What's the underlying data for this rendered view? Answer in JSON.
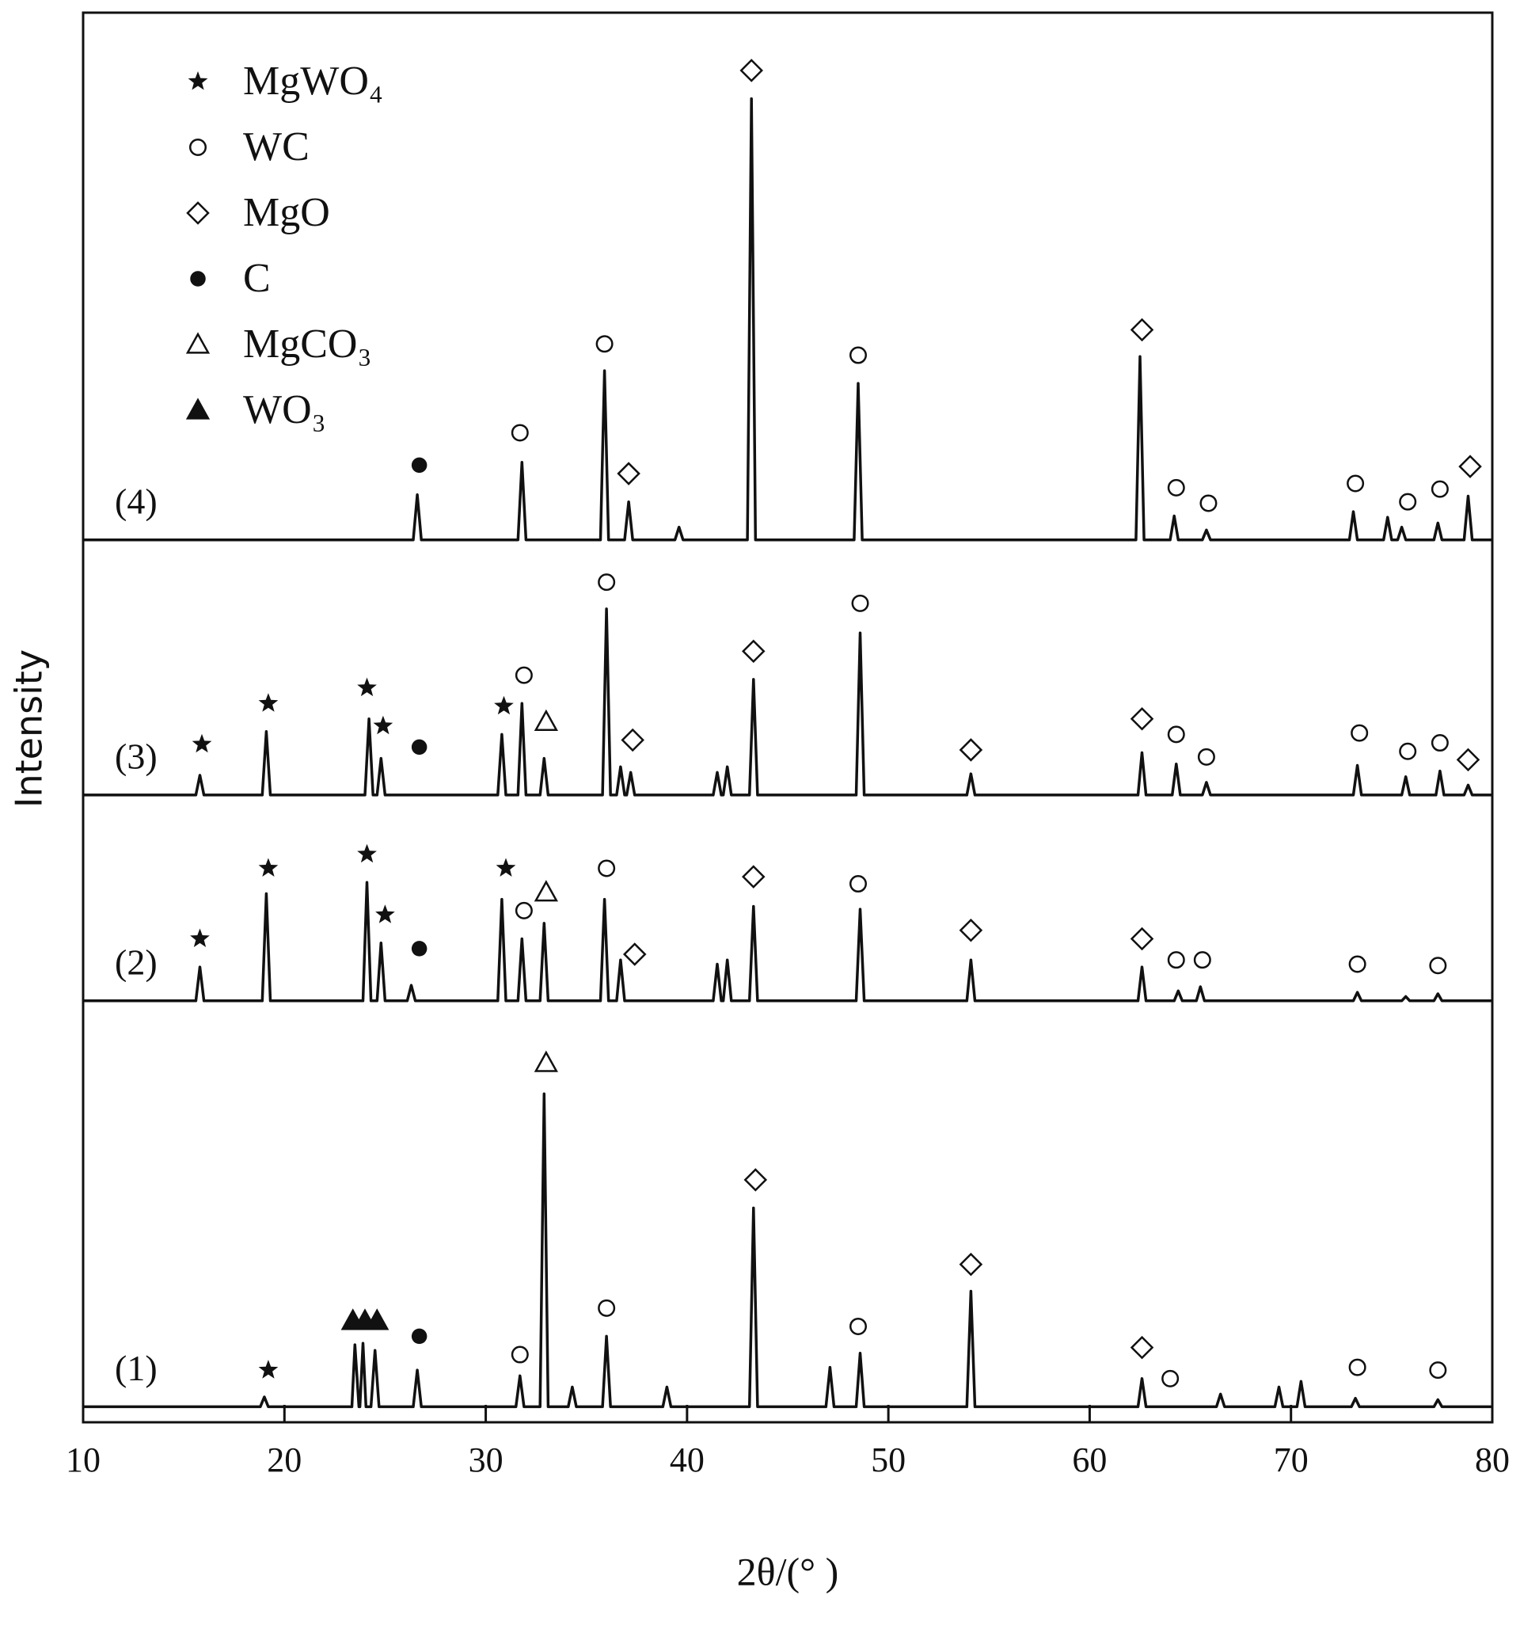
{
  "chart_data": {
    "type": "line",
    "xlabel": "2θ/(° )",
    "ylabel": "Intensity",
    "xlim": [
      10,
      80
    ],
    "xticks": [
      10,
      20,
      30,
      40,
      50,
      60,
      70,
      80
    ],
    "ylim": [
      0,
      100
    ],
    "series": [
      {
        "name": "(4)",
        "color": "#111111",
        "x": [
          10,
          26.4,
          26.6,
          26.8,
          31.6,
          31.8,
          32,
          35.7,
          35.9,
          36.1,
          36.9,
          37.1,
          37.3,
          39.4,
          39.6,
          39.8,
          43,
          43.2,
          43.4,
          48.3,
          48.5,
          48.7,
          62.3,
          62.5,
          62.7,
          64,
          64.2,
          64.4,
          65.6,
          65.8,
          66,
          72.9,
          73.1,
          73.3,
          74.6,
          74.8,
          75,
          75.3,
          75.5,
          75.7,
          77.1,
          77.3,
          77.5,
          78.6,
          78.8,
          79,
          80
        ],
        "values": [
          62.6,
          62.6,
          65.8,
          62.6,
          62.6,
          68.1,
          62.6,
          62.6,
          74.6,
          62.6,
          62.6,
          65.3,
          62.6,
          62.6,
          63.5,
          62.6,
          62.6,
          93.9,
          62.6,
          62.6,
          73.7,
          62.6,
          62.6,
          75.6,
          62.6,
          62.6,
          64.3,
          62.6,
          62.6,
          63.3,
          62.6,
          62.6,
          64.6,
          62.6,
          62.6,
          64.2,
          62.6,
          62.6,
          63.5,
          62.6,
          62.6,
          63.8,
          62.6,
          62.6,
          65.7,
          62.6,
          62.6
        ]
      },
      {
        "name": "(3)",
        "color": "#111111",
        "x": [
          10,
          15.6,
          15.8,
          16,
          18.9,
          19.1,
          19.3,
          24,
          24.2,
          24.4,
          24.6,
          24.8,
          25,
          30.6,
          30.8,
          31,
          31.6,
          31.8,
          32,
          32.7,
          32.9,
          33.1,
          35.8,
          36,
          36.2,
          36.5,
          36.7,
          36.9,
          37,
          37.2,
          37.4,
          41.3,
          41.5,
          41.7,
          41.8,
          42,
          42.2,
          43.1,
          43.3,
          43.5,
          48.4,
          48.6,
          48.8,
          53.9,
          54.1,
          54.3,
          62.4,
          62.6,
          62.8,
          64.1,
          64.3,
          64.5,
          65.6,
          65.8,
          66,
          73.1,
          73.3,
          73.5,
          75.5,
          75.7,
          75.9,
          77.2,
          77.4,
          77.6,
          78.6,
          78.8,
          79,
          80
        ],
        "values": [
          44.5,
          44.5,
          45.9,
          44.5,
          44.5,
          49.0,
          44.5,
          44.5,
          49.9,
          44.5,
          44.5,
          47.1,
          44.5,
          44.5,
          48.8,
          44.5,
          44.5,
          51.0,
          44.5,
          44.5,
          47.1,
          44.5,
          44.5,
          57.7,
          44.5,
          44.5,
          46.5,
          44.5,
          44.5,
          46.1,
          44.5,
          44.5,
          46.1,
          44.5,
          44.5,
          46.5,
          44.5,
          44.5,
          52.7,
          44.5,
          44.5,
          56.0,
          44.5,
          44.5,
          46.0,
          44.5,
          44.5,
          47.5,
          44.5,
          44.5,
          46.7,
          44.5,
          44.5,
          45.4,
          44.5,
          44.5,
          46.6,
          44.5,
          44.5,
          45.8,
          44.5,
          44.5,
          46.2,
          44.5,
          44.5,
          45.2,
          44.5,
          44.5
        ]
      },
      {
        "name": "(2)",
        "color": "#111111",
        "x": [
          10,
          15.6,
          15.8,
          16,
          18.9,
          19.1,
          19.3,
          23.9,
          24.1,
          24.3,
          24.6,
          24.8,
          25,
          26.1,
          26.3,
          26.5,
          30.6,
          30.8,
          31,
          31.6,
          31.8,
          32,
          32.7,
          32.9,
          33.1,
          35.7,
          35.9,
          36.1,
          36.5,
          36.7,
          36.9,
          41.3,
          41.5,
          41.7,
          41.8,
          42,
          42.2,
          43.1,
          43.3,
          43.5,
          48.4,
          48.6,
          48.8,
          53.9,
          54.1,
          54.3,
          62.4,
          62.6,
          62.8,
          64.2,
          64.4,
          64.6,
          65.3,
          65.5,
          65.7,
          73.1,
          73.3,
          73.5,
          75.5,
          75.7,
          75.9,
          77.1,
          77.3,
          77.5,
          80
        ],
        "values": [
          29.9,
          29.9,
          32.3,
          29.9,
          29.9,
          37.5,
          29.9,
          29.9,
          38.3,
          29.9,
          29.9,
          34.0,
          29.9,
          29.9,
          31.0,
          29.9,
          29.9,
          37.1,
          29.9,
          29.9,
          34.3,
          29.9,
          29.9,
          35.4,
          29.9,
          29.9,
          37.1,
          29.9,
          29.9,
          32.8,
          29.9,
          29.9,
          32.5,
          29.9,
          29.9,
          32.8,
          29.9,
          29.9,
          36.6,
          29.9,
          29.9,
          36.4,
          29.9,
          29.9,
          32.8,
          29.9,
          29.9,
          32.3,
          29.9,
          29.9,
          30.6,
          29.9,
          29.9,
          30.9,
          29.9,
          29.9,
          30.5,
          29.9,
          29.9,
          30.2,
          29.9,
          29.9,
          30.4,
          29.9,
          29.9
        ]
      },
      {
        "name": "(1)",
        "color": "#111111",
        "x": [
          10,
          18.8,
          19,
          19.2,
          23.35,
          23.5,
          23.7,
          23.75,
          23.9,
          24.05,
          24.3,
          24.5,
          24.7,
          26.4,
          26.6,
          26.8,
          31.5,
          31.7,
          31.9,
          32.7,
          32.9,
          33.1,
          34.1,
          34.3,
          34.5,
          35.8,
          36,
          36.2,
          38.8,
          39,
          39.2,
          43.1,
          43.3,
          43.5,
          46.9,
          47.1,
          47.3,
          48.4,
          48.6,
          48.8,
          53.9,
          54.1,
          54.3,
          62.4,
          62.6,
          62.8,
          66.3,
          66.5,
          66.7,
          69.2,
          69.4,
          69.6,
          70.3,
          70.5,
          70.7,
          73,
          73.2,
          73.4,
          77.1,
          77.3,
          77.5,
          80
        ],
        "values": [
          1.1,
          1.1,
          1.8,
          1.1,
          1.1,
          5.5,
          1.1,
          1.1,
          5.6,
          1.1,
          1.1,
          5.1,
          1.1,
          1.1,
          3.7,
          1.1,
          1.1,
          3.3,
          1.1,
          1.1,
          23.3,
          1.1,
          1.1,
          2.5,
          1.1,
          1.1,
          6.1,
          1.1,
          1.1,
          2.5,
          1.1,
          1.1,
          15.2,
          1.1,
          1.1,
          3.9,
          1.1,
          1.1,
          4.9,
          1.1,
          1.1,
          9.3,
          1.1,
          1.1,
          3.1,
          1.1,
          1.1,
          2.0,
          1.1,
          1.1,
          2.5,
          1.1,
          1.1,
          2.9,
          1.1,
          1.1,
          1.7,
          1.1,
          1.1,
          1.6,
          1.1,
          1.1
        ]
      }
    ],
    "legend": [
      {
        "name": "MgWO₄",
        "marker": "star"
      },
      {
        "name": "WC",
        "marker": "circle"
      },
      {
        "name": "MgO",
        "marker": "diamond"
      },
      {
        "name": "C",
        "marker": "dot"
      },
      {
        "name": "MgCO₃",
        "marker": "triangle-open"
      },
      {
        "name": "WO₃",
        "marker": "triangle"
      }
    ],
    "annotations": [
      {
        "marker": "diamond",
        "x": 43.2,
        "y": 95.9
      },
      {
        "marker": "circle",
        "x": 31.7,
        "y": 70.2
      },
      {
        "marker": "circle",
        "x": 35.9,
        "y": 76.5
      },
      {
        "marker": "diamond",
        "x": 37.1,
        "y": 67.3
      },
      {
        "marker": "dot",
        "x": 26.7,
        "y": 67.9
      },
      {
        "marker": "circle",
        "x": 48.5,
        "y": 75.7
      },
      {
        "marker": "diamond",
        "x": 62.6,
        "y": 77.5
      },
      {
        "marker": "circle",
        "x": 64.3,
        "y": 66.3
      },
      {
        "marker": "circle",
        "x": 65.9,
        "y": 65.2
      },
      {
        "marker": "circle",
        "x": 73.2,
        "y": 66.6
      },
      {
        "marker": "circle",
        "x": 75.8,
        "y": 65.3
      },
      {
        "marker": "circle",
        "x": 77.4,
        "y": 66.2
      },
      {
        "marker": "diamond",
        "x": 78.9,
        "y": 67.8
      },
      {
        "marker": "star",
        "x": 15.9,
        "y": 48.1
      },
      {
        "marker": "star",
        "x": 19.2,
        "y": 51.0
      },
      {
        "marker": "star",
        "x": 24.1,
        "y": 52.1
      },
      {
        "marker": "star",
        "x": 24.9,
        "y": 49.4
      },
      {
        "marker": "dot",
        "x": 26.7,
        "y": 47.9
      },
      {
        "marker": "star",
        "x": 30.9,
        "y": 50.8
      },
      {
        "marker": "circle",
        "x": 31.9,
        "y": 53.0
      },
      {
        "marker": "triangle-open",
        "x": 33.0,
        "y": 49.7
      },
      {
        "marker": "circle",
        "x": 36.0,
        "y": 59.6
      },
      {
        "marker": "diamond",
        "x": 37.3,
        "y": 48.4
      },
      {
        "marker": "diamond",
        "x": 43.3,
        "y": 54.7
      },
      {
        "marker": "circle",
        "x": 48.6,
        "y": 58.1
      },
      {
        "marker": "diamond",
        "x": 54.1,
        "y": 47.7
      },
      {
        "marker": "diamond",
        "x": 62.6,
        "y": 49.9
      },
      {
        "marker": "circle",
        "x": 64.3,
        "y": 48.8
      },
      {
        "marker": "circle",
        "x": 65.8,
        "y": 47.2
      },
      {
        "marker": "circle",
        "x": 73.4,
        "y": 48.9
      },
      {
        "marker": "circle",
        "x": 75.8,
        "y": 47.6
      },
      {
        "marker": "circle",
        "x": 77.4,
        "y": 48.2
      },
      {
        "marker": "diamond",
        "x": 78.8,
        "y": 47.0
      },
      {
        "marker": "star",
        "x": 15.8,
        "y": 34.3
      },
      {
        "marker": "star",
        "x": 19.2,
        "y": 39.3
      },
      {
        "marker": "star",
        "x": 24.1,
        "y": 40.3
      },
      {
        "marker": "star",
        "x": 25.0,
        "y": 36.0
      },
      {
        "marker": "dot",
        "x": 26.7,
        "y": 33.6
      },
      {
        "marker": "star",
        "x": 31.0,
        "y": 39.3
      },
      {
        "marker": "circle",
        "x": 31.9,
        "y": 36.3
      },
      {
        "marker": "triangle-open",
        "x": 33.0,
        "y": 37.6
      },
      {
        "marker": "circle",
        "x": 36.0,
        "y": 39.3
      },
      {
        "marker": "diamond",
        "x": 37.4,
        "y": 33.2
      },
      {
        "marker": "diamond",
        "x": 43.3,
        "y": 38.7
      },
      {
        "marker": "circle",
        "x": 48.5,
        "y": 38.2
      },
      {
        "marker": "diamond",
        "x": 54.1,
        "y": 34.9
      },
      {
        "marker": "diamond",
        "x": 62.6,
        "y": 34.3
      },
      {
        "marker": "circle",
        "x": 64.3,
        "y": 32.8
      },
      {
        "marker": "circle",
        "x": 65.6,
        "y": 32.8
      },
      {
        "marker": "circle",
        "x": 73.3,
        "y": 32.5
      },
      {
        "marker": "circle",
        "x": 77.3,
        "y": 32.4
      },
      {
        "marker": "star",
        "x": 19.2,
        "y": 3.7
      },
      {
        "marker": "triangle",
        "x": 23.4,
        "y": 7.2
      },
      {
        "marker": "triangle",
        "x": 24.0,
        "y": 7.2
      },
      {
        "marker": "triangle",
        "x": 24.6,
        "y": 7.2
      },
      {
        "marker": "dot",
        "x": 26.7,
        "y": 6.1
      },
      {
        "marker": "circle",
        "x": 31.7,
        "y": 4.8
      },
      {
        "marker": "triangle-open",
        "x": 33.0,
        "y": 25.5
      },
      {
        "marker": "circle",
        "x": 36.0,
        "y": 8.1
      },
      {
        "marker": "diamond",
        "x": 43.4,
        "y": 17.2
      },
      {
        "marker": "circle",
        "x": 48.5,
        "y": 6.8
      },
      {
        "marker": "diamond",
        "x": 54.1,
        "y": 11.2
      },
      {
        "marker": "diamond",
        "x": 62.6,
        "y": 5.3
      },
      {
        "marker": "circle",
        "x": 64.0,
        "y": 3.1
      },
      {
        "marker": "circle",
        "x": 73.3,
        "y": 3.9
      },
      {
        "marker": "circle",
        "x": 77.3,
        "y": 3.7
      }
    ]
  }
}
